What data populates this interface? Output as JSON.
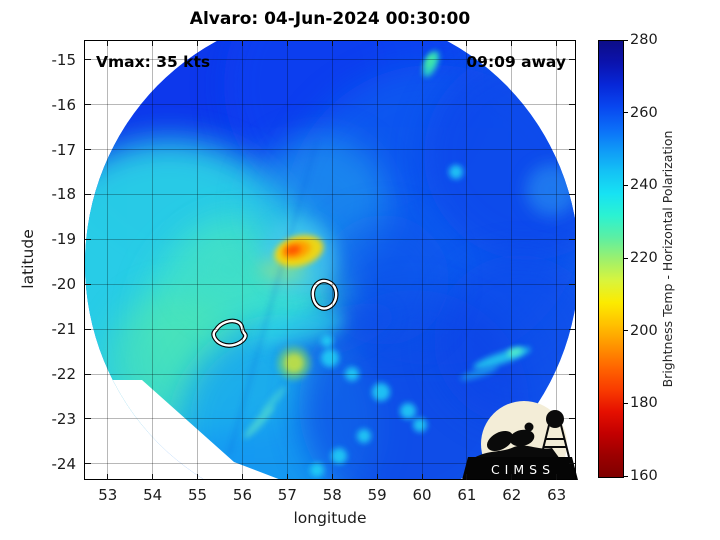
{
  "title": "Alvaro: 04-Jun-2024 00:30:00",
  "annotations": {
    "vmax": "Vmax: 35 kts",
    "eta": "09:09 away"
  },
  "axes": {
    "xlabel": "longitude",
    "ylabel": "latitude",
    "xticks": [
      53,
      54,
      55,
      56,
      57,
      58,
      59,
      60,
      61,
      62,
      63
    ],
    "yticks": [
      -15,
      -16,
      -17,
      -18,
      -19,
      -20,
      -21,
      -22,
      -23,
      -24
    ],
    "xlim": [
      52.47,
      63.43
    ],
    "ylim": [
      -14.56,
      -24.36
    ]
  },
  "colorbar": {
    "label": "Brightness Temp - Horizontal Polarization",
    "ticks": [
      280,
      260,
      240,
      220,
      200,
      180,
      160
    ],
    "range": [
      160,
      280
    ],
    "stops": [
      {
        "v": 160,
        "c": "#7f0000"
      },
      {
        "v": 166,
        "c": "#9c0000"
      },
      {
        "v": 172,
        "c": "#c30000"
      },
      {
        "v": 178,
        "c": "#e51000"
      },
      {
        "v": 184,
        "c": "#f93b00"
      },
      {
        "v": 190,
        "c": "#ff6400"
      },
      {
        "v": 196,
        "c": "#ff9300"
      },
      {
        "v": 202,
        "c": "#ffc100"
      },
      {
        "v": 208,
        "c": "#fceb00"
      },
      {
        "v": 214,
        "c": "#d9f43c"
      },
      {
        "v": 220,
        "c": "#9df06d"
      },
      {
        "v": 226,
        "c": "#5befa4"
      },
      {
        "v": 232,
        "c": "#2bf2d2"
      },
      {
        "v": 238,
        "c": "#17e2f3"
      },
      {
        "v": 244,
        "c": "#14c2f5"
      },
      {
        "v": 250,
        "c": "#0f99f7"
      },
      {
        "v": 256,
        "c": "#0b6cf8"
      },
      {
        "v": 262,
        "c": "#0846ef"
      },
      {
        "v": 268,
        "c": "#0727d8"
      },
      {
        "v": 274,
        "c": "#0b13ae"
      },
      {
        "v": 280,
        "c": "#0d0d88"
      }
    ]
  },
  "logo": {
    "text": "CIMSS"
  },
  "chart_data": {
    "type": "heatmap",
    "title": "Alvaro: 04-Jun-2024 00:30:00",
    "xlabel": "longitude",
    "ylabel": "latitude",
    "xlim": [
      52.47,
      63.43
    ],
    "ylim": [
      -24.36,
      -14.56
    ],
    "xticks": [
      53,
      54,
      55,
      56,
      57,
      58,
      59,
      60,
      61,
      62,
      63
    ],
    "yticks": [
      -15,
      -16,
      -17,
      -18,
      -19,
      -20,
      -21,
      -22,
      -23,
      -24
    ],
    "grid": true,
    "colorbar_label": "Brightness Temp - Horizontal Polarization",
    "colorbar_range_K": [
      160,
      280
    ],
    "colorbar_ticks": [
      160,
      180,
      200,
      220,
      240,
      260,
      280
    ],
    "annotations": [
      "Vmax: 35 kts",
      "09:09 away"
    ],
    "swath": {
      "shape": "circular",
      "center_lon": 57.9,
      "center_lat": -19.6,
      "radius_deg": 5.4
    },
    "features": [
      {
        "name": "cold convective cloud spot",
        "lon": 57.3,
        "lat": -19.3,
        "approx_temp_K": 200
      },
      {
        "name": "warmer deep-blue background north and east",
        "approx_temp_K": 258
      },
      {
        "name": "cooler cyan region west-southwest",
        "approx_temp_K": 238
      },
      {
        "name": "greenish patch",
        "lon": 55.0,
        "lat": -20.9,
        "approx_temp_K": 228
      },
      {
        "name": "small cold spot",
        "lon": 57.3,
        "lat": -22.0,
        "approx_temp_K": 215
      },
      {
        "name": "bright streak on swath edge",
        "lon": 60.2,
        "lat": -15.4,
        "approx_temp_K": 225
      },
      {
        "name": "cyan streak",
        "lon": 61.6,
        "lat": -21.5,
        "approx_temp_K": 230
      },
      {
        "name": "Mauritius coastline contour",
        "lon": 57.55,
        "lat": -20.3
      },
      {
        "name": "Reunion coastline contour",
        "lon": 55.55,
        "lat": -21.1
      }
    ]
  }
}
